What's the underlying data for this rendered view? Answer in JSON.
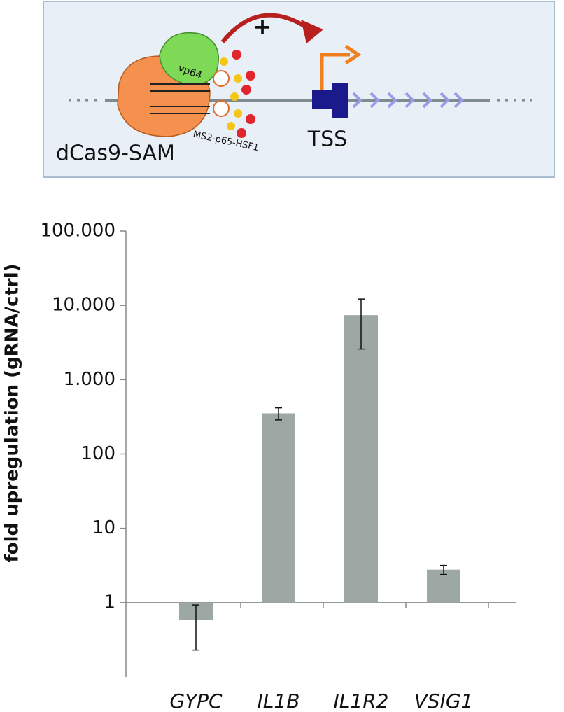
{
  "diagram": {
    "plus": "+",
    "vp64": "vp64",
    "ms2": "MS2-p65-HSF1",
    "tss": "TSS",
    "dcas9": "dCas9-SAM"
  },
  "chart_data": {
    "type": "bar",
    "y_label": "fold upregulation (gRNA/ctrl)",
    "categories": [
      "GYPC",
      "IL1B",
      "IL1R2",
      "VSIG1"
    ],
    "values": [
      0.58,
      352,
      7380,
      2.78
    ],
    "errors": [
      0.35,
      65,
      4800,
      0.39
    ],
    "color": "#9da8a4",
    "log_y": true,
    "ylim": [
      0.1,
      100000
    ],
    "yticks": [
      1,
      10,
      100,
      {
        "value": 1000,
        "label": "1.000"
      },
      {
        "value": 10000,
        "label": "10.000"
      },
      {
        "value": 100000,
        "label": "100.000"
      }
    ]
  }
}
